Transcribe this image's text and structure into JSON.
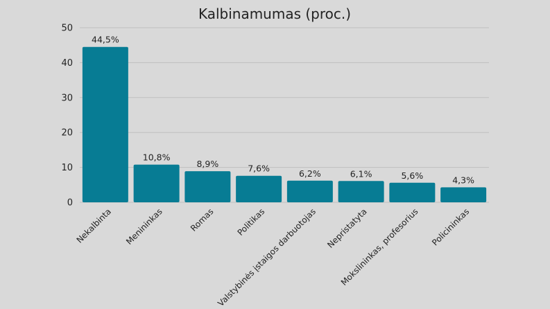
{
  "chart_data": {
    "type": "bar",
    "title": "Kalbinamumas (proc.)",
    "categories": [
      "Nekalbinta",
      "Menininkas",
      "Romas",
      "Politikas",
      "Valstybinės įstaigos darbuotojas",
      "Nepristatyta",
      "Mokslininkas, profesorius",
      "Policininkas"
    ],
    "values": [
      44.5,
      10.8,
      8.9,
      7.6,
      6.2,
      6.1,
      5.6,
      4.3
    ],
    "data_labels": [
      "44,5%",
      "10,8%",
      "8,9%",
      "7,6%",
      "6,2%",
      "6,1%",
      "5,6%",
      "4,3%"
    ],
    "ylim": [
      0,
      50
    ],
    "yticks": [
      0,
      10,
      20,
      30,
      40,
      50
    ],
    "grid": true,
    "bar_color": "#077c94",
    "grid_color": "#bfbfbf",
    "background": "#d9d9d9"
  }
}
